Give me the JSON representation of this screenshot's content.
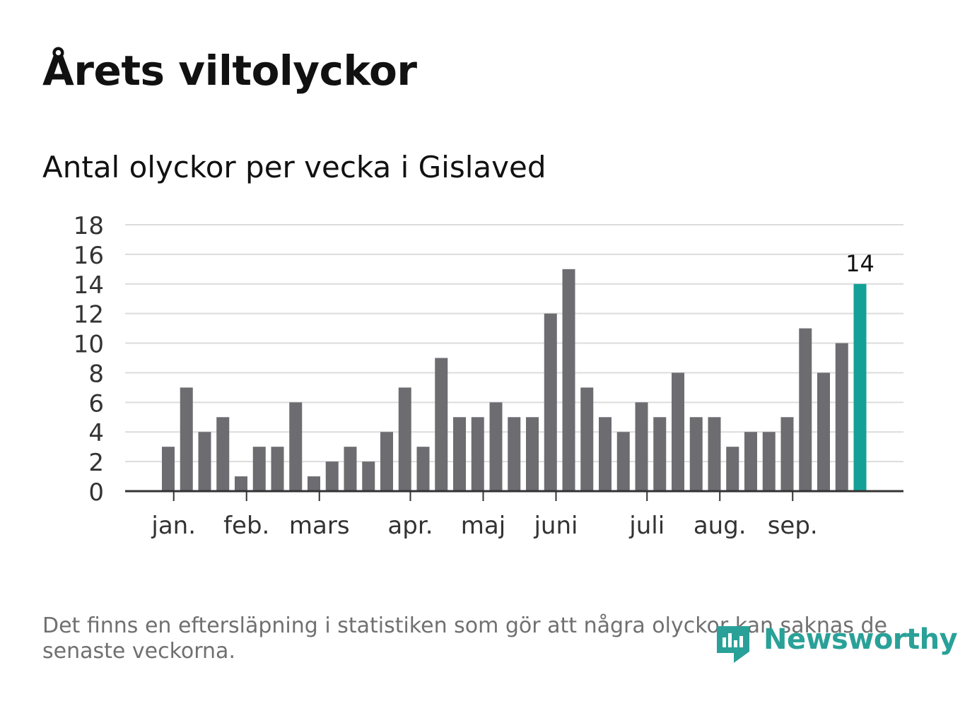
{
  "header": {
    "title": "Årets viltolyckor",
    "subtitle": "Antal olyckor per vecka i Gislaved"
  },
  "footnote": "Det finns en eftersläpning i statistiken som gör att några olyckor kan saknas de senaste veckorna.",
  "brand": {
    "name": "Newsworthy",
    "color": "#2aa198"
  },
  "colors": {
    "bar": "#6d6c71",
    "highlight": "#14a096",
    "grid": "#dcdcdc",
    "axis": "#333333",
    "tick_text": "#333333"
  },
  "chart_data": {
    "type": "bar",
    "title": "Antal olyckor per vecka i Gislaved",
    "xlabel": "",
    "ylabel": "",
    "ylim": [
      0,
      18
    ],
    "yticks": [
      "0",
      "2",
      "4",
      "6",
      "8",
      "10",
      "12",
      "14",
      "16",
      "18"
    ],
    "grid": true,
    "weeks": [
      1,
      2,
      3,
      4,
      5,
      6,
      7,
      8,
      9,
      10,
      11,
      12,
      13,
      14,
      15,
      16,
      17,
      18,
      19,
      20,
      21,
      22,
      23,
      24,
      25,
      26,
      27,
      28,
      29,
      30,
      31,
      32,
      33,
      34,
      35,
      36,
      37,
      38,
      39
    ],
    "values": [
      3,
      7,
      4,
      5,
      1,
      3,
      3,
      6,
      1,
      2,
      3,
      2,
      4,
      7,
      3,
      9,
      5,
      5,
      6,
      5,
      5,
      12,
      15,
      7,
      5,
      4,
      6,
      5,
      8,
      5,
      5,
      3,
      4,
      4,
      5,
      11,
      8,
      10,
      14
    ],
    "highlight_index": 38,
    "highlight_label": "14",
    "month_labels": [
      "jan.",
      "feb.",
      "mars",
      "apr.",
      "maj",
      "juni",
      "juli",
      "aug.",
      "sep."
    ],
    "month_positions_week": [
      1.3,
      5.3,
      9.3,
      14.3,
      18.3,
      22.3,
      27.3,
      31.3,
      35.3
    ]
  }
}
